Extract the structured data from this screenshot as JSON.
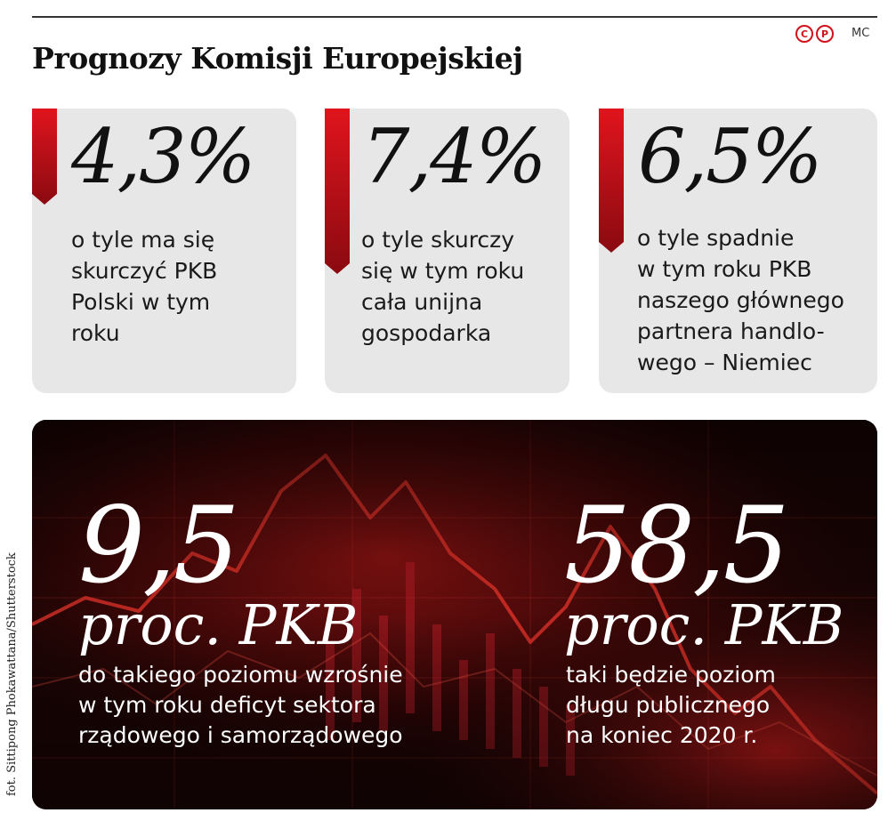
{
  "title": "Prognozy Komisji Europejskiej",
  "logo": {
    "letter_1": "C",
    "letter_2": "P",
    "icon": "cp-logo-icon"
  },
  "author": "MC",
  "accent_color": "#d0121b",
  "cards": [
    {
      "value": "4,3%",
      "text": "o tyle ma się\nskurczyć PKB\nPolski w tym\nroku"
    },
    {
      "value": "7,4%",
      "text": "o tyle skurczy\nsię w tym roku\ncała unijna\ngospodarka"
    },
    {
      "value": "6,5%",
      "text": "o tyle spadnie\nw tym roku PKB\nnaszego głównego\npartnera handlo-\nwego – Niemiec"
    }
  ],
  "stats": [
    {
      "value": "9,5",
      "unit": "proc. PKB",
      "text": "do takiego poziomu wzrośnie\nw tym roku deficyt sektora\nrządowego i samorządowego"
    },
    {
      "value": "58,5",
      "unit": "proc. PKB",
      "text": "taki będzie poziom\ndługu publicznego\nna koniec 2020 r."
    }
  ],
  "photo_credit": "fot. Sittipong Phokawattana/Shutterstock"
}
